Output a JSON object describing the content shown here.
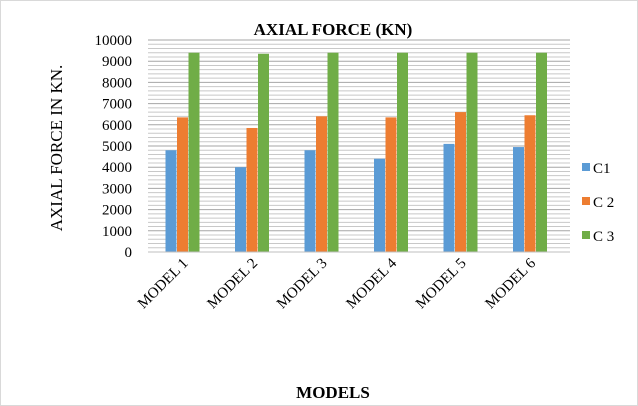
{
  "chart_data": {
    "type": "bar",
    "title": "AXIAL FORCE (KN)",
    "xlabel": "MODELS",
    "ylabel": "AXIAL FORCE IN KN.",
    "categories": [
      "MODEL 1",
      "MODEL 2",
      "MODEL 3",
      "MODEL 4",
      "MODEL 5",
      "MODEL 6"
    ],
    "series": [
      {
        "name": "C1",
        "color": "#5b9bd5",
        "values": [
          4800,
          4000,
          4800,
          4400,
          5100,
          4950
        ]
      },
      {
        "name": "C 2",
        "color": "#ed7d31",
        "values": [
          6350,
          5850,
          6400,
          6350,
          6600,
          6450
        ]
      },
      {
        "name": "C 3",
        "color": "#70ad47",
        "values": [
          9400,
          9350,
          9400,
          9400,
          9400,
          9400
        ]
      }
    ],
    "ylim": [
      0,
      10000
    ],
    "yticks": [
      0,
      1000,
      2000,
      3000,
      4000,
      5000,
      6000,
      7000,
      8000,
      9000,
      10000
    ],
    "grid": true,
    "legend_position": "right"
  }
}
